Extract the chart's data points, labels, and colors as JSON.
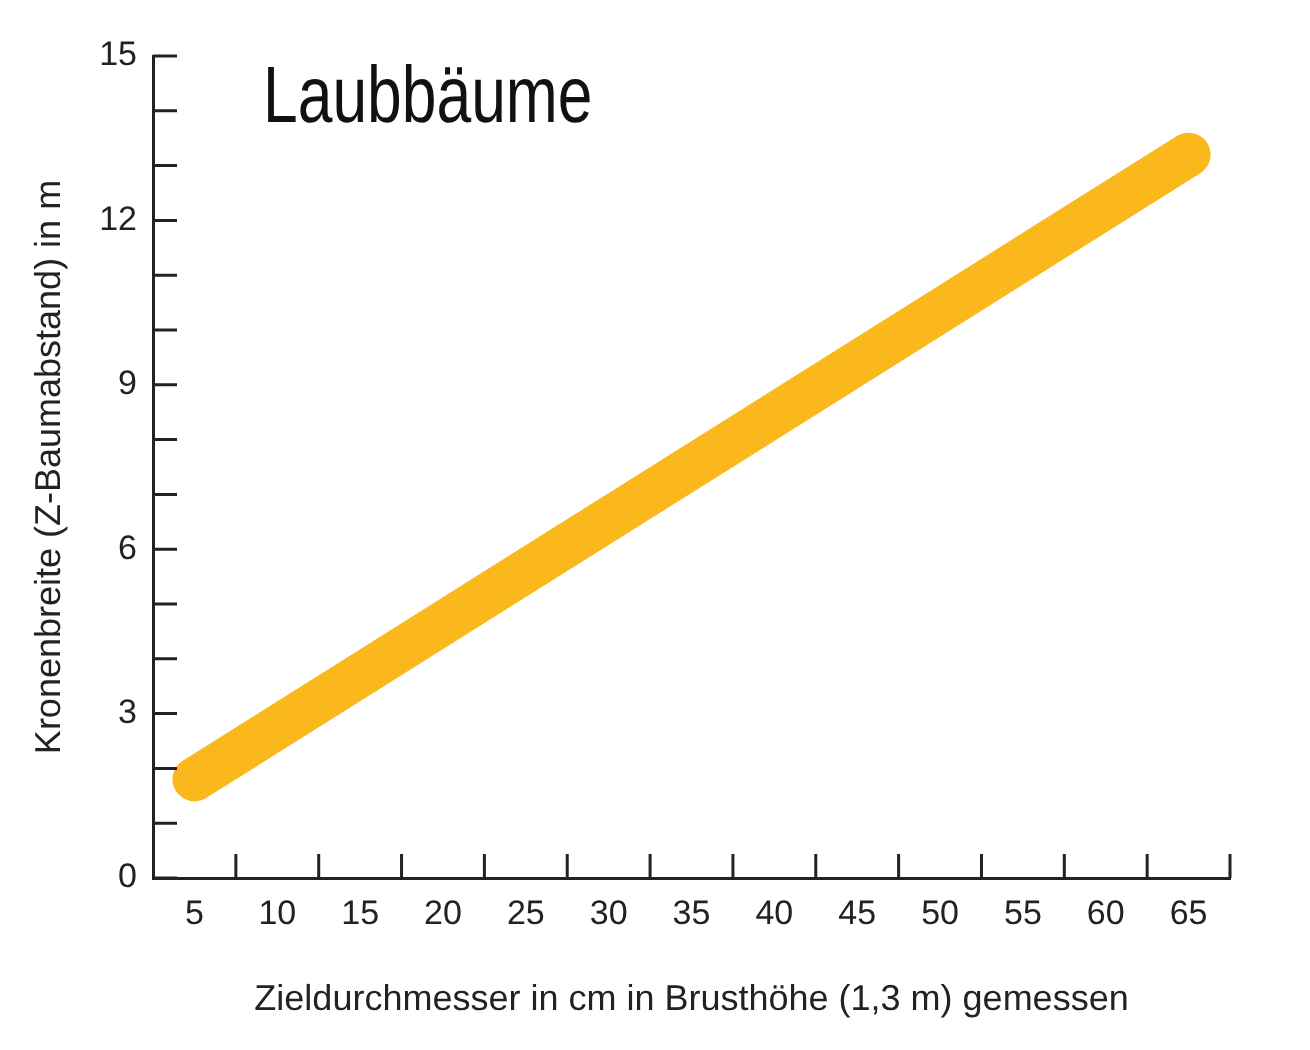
{
  "chart_data": {
    "type": "line",
    "title": "Laubbäume",
    "xlabel": "Zieldurchmesser in cm in Brusthöhe (1,3 m) gemessen",
    "ylabel": "Kronenbreite (Z-Baumabstand) in m",
    "x": [
      5,
      65
    ],
    "series": [
      {
        "color": "#fbb81d",
        "values": [
          1.8,
          13.2
        ]
      }
    ],
    "xlim": [
      2.5,
      67.5
    ],
    "xticks": [
      5,
      {
        "value": 7.5,
        "label": null
      },
      10,
      {
        "value": 12.5,
        "label": null
      },
      15,
      {
        "value": 17.5,
        "label": null
      },
      20,
      {
        "value": 22.5,
        "label": null
      },
      25,
      {
        "value": 27.5,
        "label": null
      },
      30,
      {
        "value": 32.5,
        "label": null
      },
      35,
      {
        "value": 37.5,
        "label": null
      },
      40,
      {
        "value": 42.5,
        "label": null
      },
      45,
      {
        "value": 47.5,
        "label": null
      },
      50,
      {
        "value": 52.5,
        "label": null
      },
      55,
      {
        "value": 57.5,
        "label": null
      },
      60,
      {
        "value": 62.5,
        "label": null
      },
      65,
      {
        "value": 67.5,
        "label": null
      }
    ],
    "ylim": [
      0,
      15
    ],
    "yticks": [
      0,
      {
        "value": 1,
        "label": null
      },
      {
        "value": 2,
        "label": null
      },
      3,
      {
        "value": 4,
        "label": null
      },
      {
        "value": 5,
        "label": null
      },
      6,
      {
        "value": 7,
        "label": null
      },
      {
        "value": 8,
        "label": null
      },
      9,
      {
        "value": 10,
        "label": null
      },
      {
        "value": 11,
        "label": null
      },
      12,
      {
        "value": 13,
        "label": null
      },
      {
        "value": 14,
        "label": null
      },
      15
    ],
    "grid": false,
    "legend": false,
    "marker": "none",
    "line_style": "solid"
  }
}
